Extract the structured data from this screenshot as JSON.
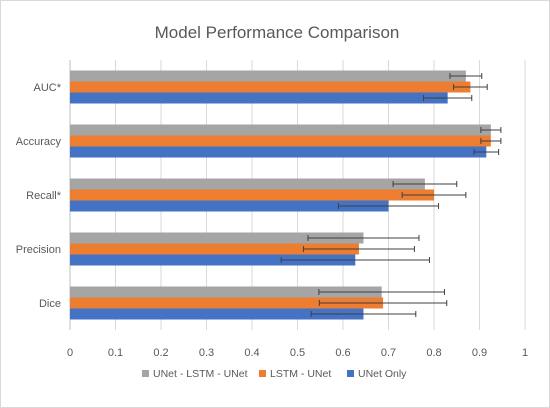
{
  "chart_data": {
    "type": "bar",
    "orientation": "horizontal",
    "title": "Model Performance Comparison",
    "categories": [
      "AUC*",
      "Accuracy",
      "Recall*",
      "Precision",
      "Dice"
    ],
    "series": [
      {
        "name": "UNet - LSTM - UNet",
        "color": "#a5a5a5",
        "values": [
          0.87,
          0.925,
          0.78,
          0.645,
          0.685
        ],
        "errors": [
          0.035,
          0.022,
          0.07,
          0.122,
          0.138
        ]
      },
      {
        "name": "LSTM - UNet",
        "color": "#ed7d31",
        "values": [
          0.88,
          0.925,
          0.8,
          0.635,
          0.688
        ],
        "errors": [
          0.037,
          0.022,
          0.07,
          0.122,
          0.14
        ]
      },
      {
        "name": "UNet Only",
        "color": "#4472c4",
        "values": [
          0.83,
          0.915,
          0.7,
          0.627,
          0.645
        ],
        "errors": [
          0.053,
          0.027,
          0.11,
          0.163,
          0.115
        ]
      }
    ],
    "xlim": [
      0,
      1
    ],
    "xticks": [
      "0",
      "0.1",
      "0.2",
      "0.3",
      "0.4",
      "0.5",
      "0.6",
      "0.7",
      "0.8",
      "0.9",
      "1"
    ],
    "grid": true,
    "legend_position": "bottom"
  }
}
